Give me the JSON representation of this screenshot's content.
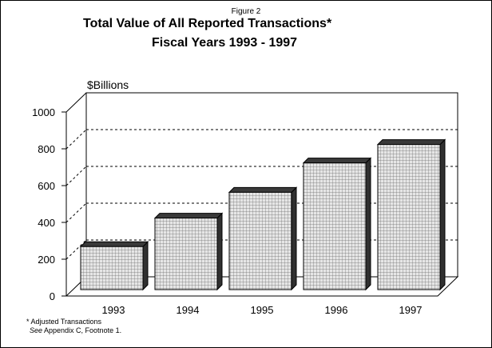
{
  "figure_label": "Figure 2",
  "title": "Total Value of All Reported Transactions*",
  "subtitle": "Fiscal Years 1993 - 1997",
  "ylabel": "$Billions",
  "footnotes": {
    "line1": "*  Adjusted Transactions",
    "line2_see": "See",
    "line2_rest": "  Appendix C, Footnote 1."
  },
  "chart_data": {
    "type": "bar",
    "title": "Total Value of All Reported Transactions*",
    "subtitle": "Fiscal Years 1993 - 1997",
    "ylabel": "$Billions",
    "xlabel": "",
    "categories": [
      "1993",
      "1994",
      "1995",
      "1996",
      "1997"
    ],
    "values": [
      225,
      380,
      520,
      680,
      780
    ],
    "ylim": [
      0,
      1000
    ],
    "yticks": [
      0,
      200,
      400,
      600,
      800,
      1000
    ],
    "grid": true,
    "legend": "none",
    "bar_fill": "#c9c9c9",
    "bar_edge": "#000000"
  }
}
